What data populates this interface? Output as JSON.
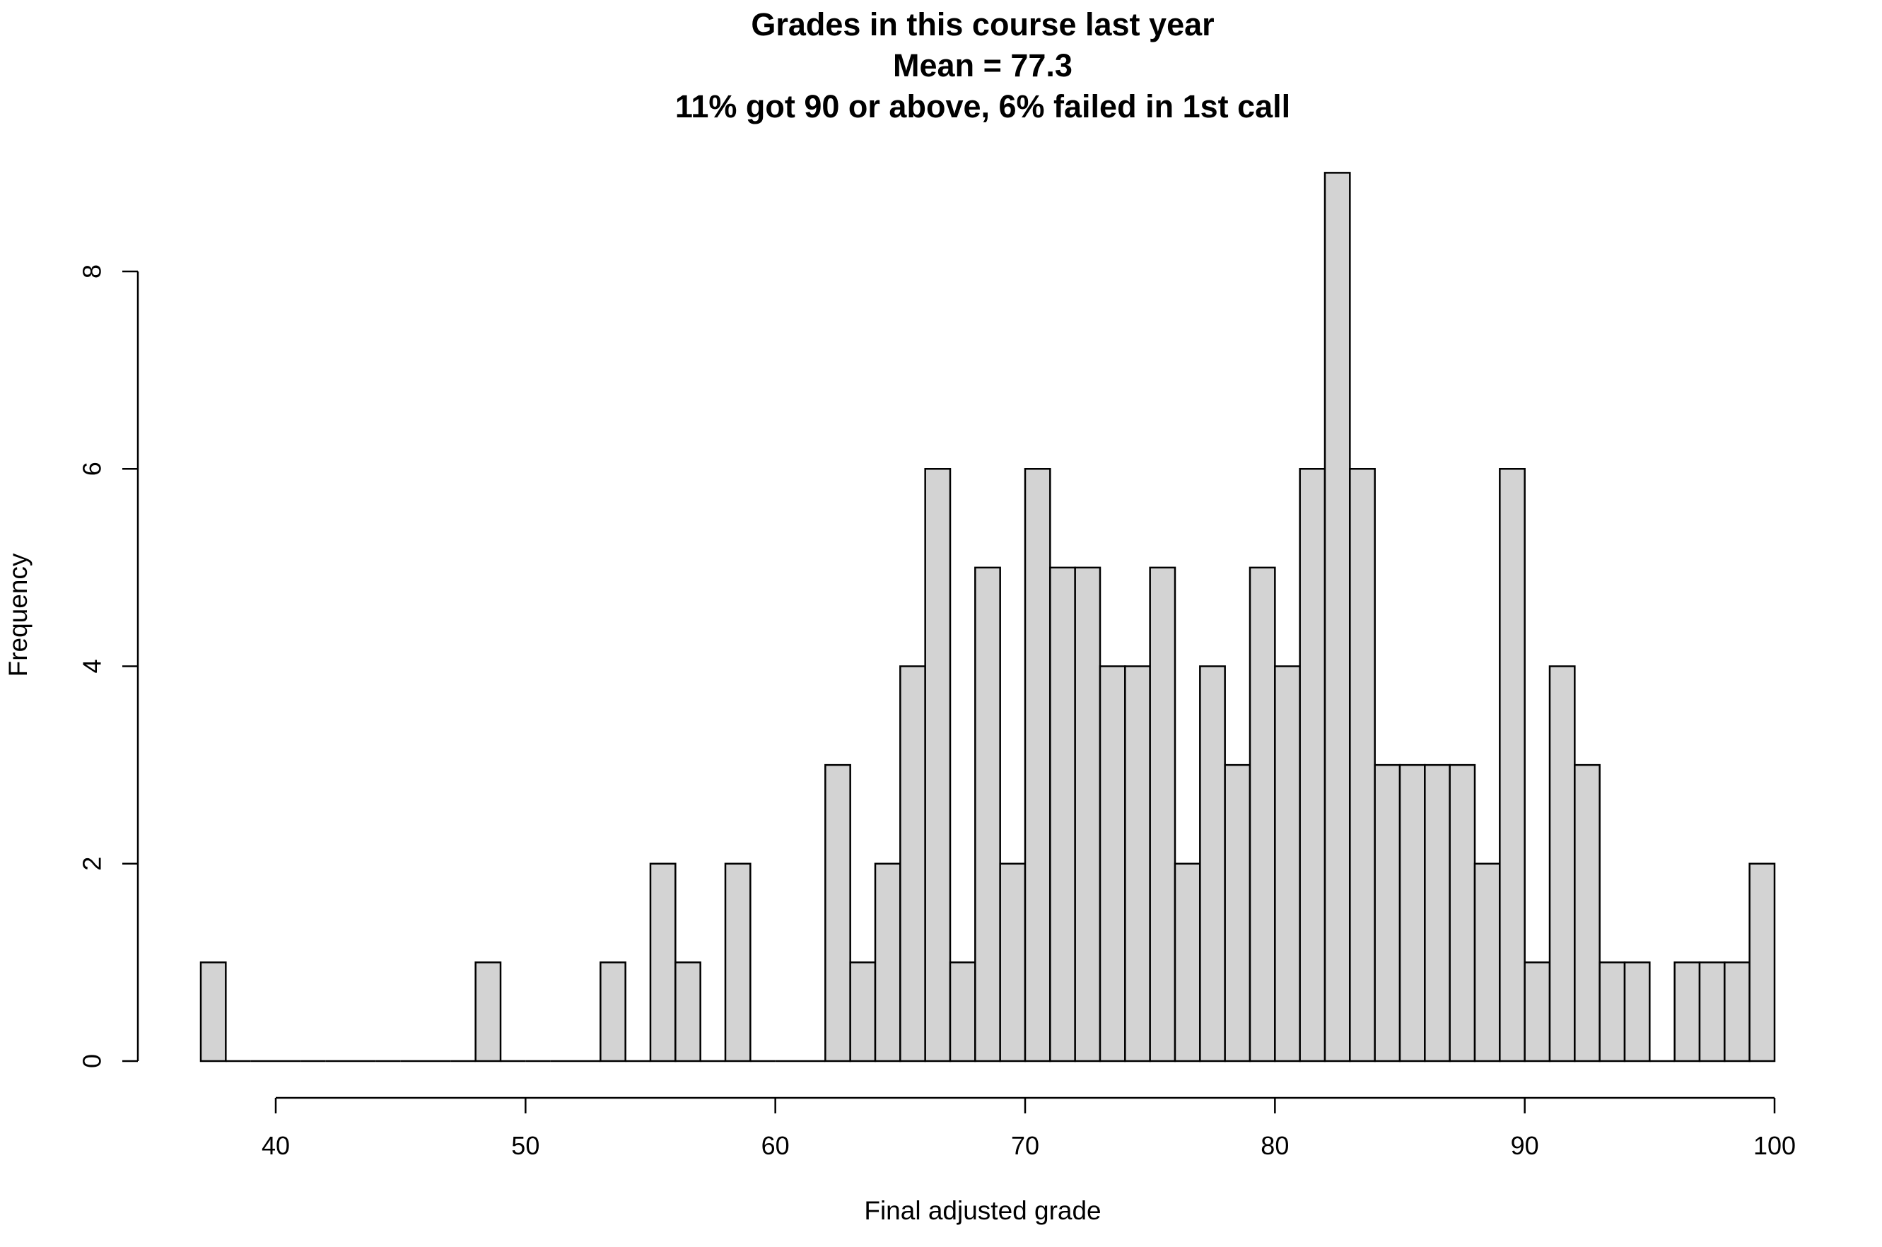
{
  "chart_data": {
    "type": "bar",
    "title": "Grades in this course last year",
    "subtitle_lines": [
      "Mean = 77.3",
      "11% got 90 or above, 6% failed in 1st call"
    ],
    "xlabel": "Final adjusted grade",
    "ylabel": "Frequency",
    "x_bin_start": 37,
    "bin_width": 1,
    "values": [
      1,
      0,
      0,
      0,
      0,
      0,
      0,
      0,
      0,
      0,
      0,
      1,
      0,
      0,
      0,
      0,
      1,
      0,
      2,
      1,
      0,
      2,
      0,
      0,
      0,
      3,
      1,
      2,
      4,
      6,
      1,
      5,
      2,
      6,
      5,
      5,
      4,
      4,
      5,
      2,
      4,
      3,
      5,
      4,
      6,
      9,
      6,
      3,
      3,
      3,
      3,
      2,
      6,
      1,
      4,
      3,
      1,
      1,
      0,
      1,
      1,
      1,
      2
    ],
    "xlim": [
      37,
      100
    ],
    "ylim": [
      0,
      9
    ],
    "x_ticks": [
      40,
      50,
      60,
      70,
      80,
      90,
      100
    ],
    "y_ticks": [
      0,
      2,
      4,
      6,
      8
    ],
    "bar_fill": "#d3d3d3",
    "bar_stroke": "#000000",
    "grid": false,
    "legend": "none"
  }
}
